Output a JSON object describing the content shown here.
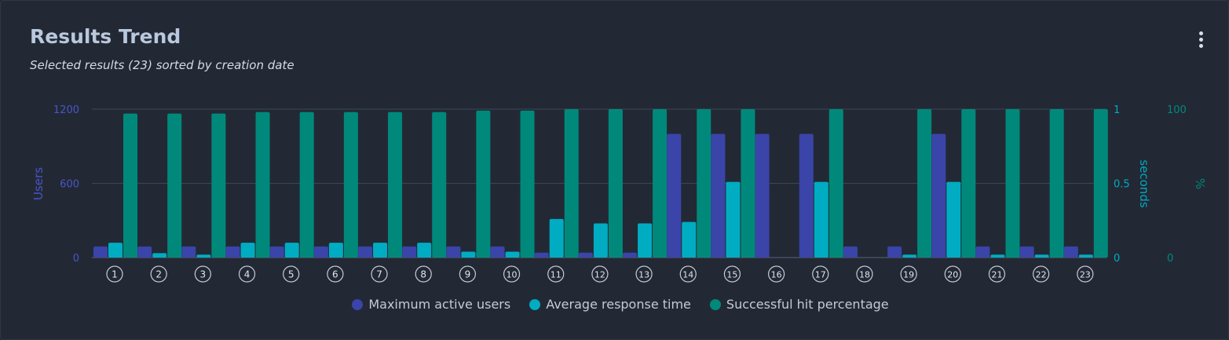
{
  "header": {
    "title": "Results Trend",
    "subtitle": "Selected results (23) sorted by creation date"
  },
  "colors": {
    "users": "#3b44a8",
    "response": "#00acc1",
    "hits": "#00897b",
    "grid": "#3a4654",
    "background": "#222935"
  },
  "chart_data": {
    "type": "bar",
    "categories": [
      "1",
      "2",
      "3",
      "4",
      "5",
      "6",
      "7",
      "8",
      "9",
      "10",
      "11",
      "12",
      "13",
      "14",
      "15",
      "16",
      "17",
      "18",
      "19",
      "20",
      "21",
      "22",
      "23"
    ],
    "series": [
      {
        "name": "Maximum active users",
        "axis": "Users",
        "values": [
          90,
          90,
          90,
          90,
          90,
          90,
          90,
          90,
          90,
          90,
          40,
          40,
          40,
          1000,
          1000,
          1000,
          1000,
          90,
          90,
          1000,
          90,
          90,
          90
        ]
      },
      {
        "name": "Average response time",
        "axis": "seconds",
        "values": [
          0.1,
          0.03,
          0.02,
          0.1,
          0.1,
          0.1,
          0.1,
          0.1,
          0.04,
          0.04,
          0.26,
          0.23,
          0.23,
          0.24,
          0.51,
          0,
          0.51,
          0,
          0.02,
          0.51,
          0.02,
          0.02,
          0.02
        ]
      },
      {
        "name": "Successful hit percentage",
        "axis": "%",
        "values": [
          97,
          97,
          97,
          98,
          98,
          98,
          98,
          98,
          99,
          99,
          100,
          100,
          100,
          100,
          100,
          0,
          100,
          0,
          100,
          100,
          100,
          100,
          100
        ]
      }
    ],
    "axes": {
      "y_left": {
        "label": "Users",
        "ylim": [
          0,
          1200
        ],
        "ticks": [
          "0",
          "600",
          "1200"
        ]
      },
      "y_right1": {
        "label": "seconds",
        "ylim": [
          0,
          1
        ],
        "ticks": [
          "0",
          "0.5",
          "1"
        ]
      },
      "y_right2": {
        "label": "%",
        "ylim": [
          0,
          100
        ],
        "ticks": [
          "0",
          "100"
        ]
      }
    },
    "grid": true,
    "legend_position": "bottom-center"
  }
}
